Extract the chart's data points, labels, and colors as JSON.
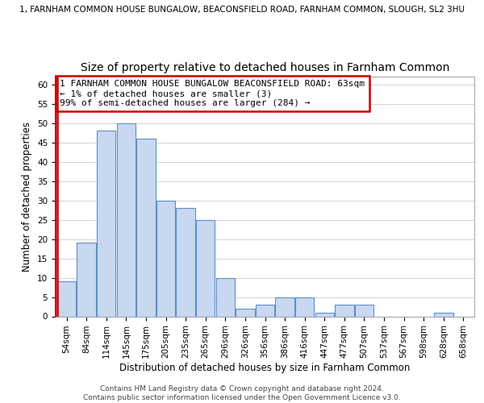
{
  "suptitle": "1, FARNHAM COMMON HOUSE BUNGALOW, BEACONSFIELD ROAD, FARNHAM COMMON, SLOUGH, SL2 3HU",
  "title": "Size of property relative to detached houses in Farnham Common",
  "xlabel": "Distribution of detached houses by size in Farnham Common",
  "ylabel": "Number of detached properties",
  "bar_labels": [
    "54sqm",
    "84sqm",
    "114sqm",
    "145sqm",
    "175sqm",
    "205sqm",
    "235sqm",
    "265sqm",
    "296sqm",
    "326sqm",
    "356sqm",
    "386sqm",
    "416sqm",
    "447sqm",
    "477sqm",
    "507sqm",
    "537sqm",
    "567sqm",
    "598sqm",
    "628sqm",
    "658sqm"
  ],
  "bar_values": [
    9,
    19,
    48,
    50,
    46,
    30,
    28,
    25,
    10,
    2,
    3,
    5,
    5,
    1,
    3,
    3,
    0,
    0,
    0,
    1,
    0
  ],
  "bar_color": "#c8d8f0",
  "bar_edge_color": "#5b8fc9",
  "highlight_bar_index": 0,
  "highlight_bar_edge_color": "#cc0000",
  "annotation_box_text": "1 FARNHAM COMMON HOUSE BUNGALOW BEACONSFIELD ROAD: 63sqm\n← 1% of detached houses are smaller (3)\n99% of semi-detached houses are larger (284) →",
  "annotation_box_edge_color": "#cc0000",
  "vline_color": "#cc0000",
  "ylim": [
    0,
    62
  ],
  "yticks": [
    0,
    5,
    10,
    15,
    20,
    25,
    30,
    35,
    40,
    45,
    50,
    55,
    60
  ],
  "footer_text": "Contains HM Land Registry data © Crown copyright and database right 2024.\nContains public sector information licensed under the Open Government Licence v3.0.",
  "background_color": "#ffffff",
  "grid_color": "#cccccc",
  "title_fontsize": 10,
  "suptitle_fontsize": 7.5,
  "axis_label_fontsize": 8.5,
  "tick_fontsize": 7.5,
  "annotation_fontsize": 8,
  "footer_fontsize": 6.5
}
